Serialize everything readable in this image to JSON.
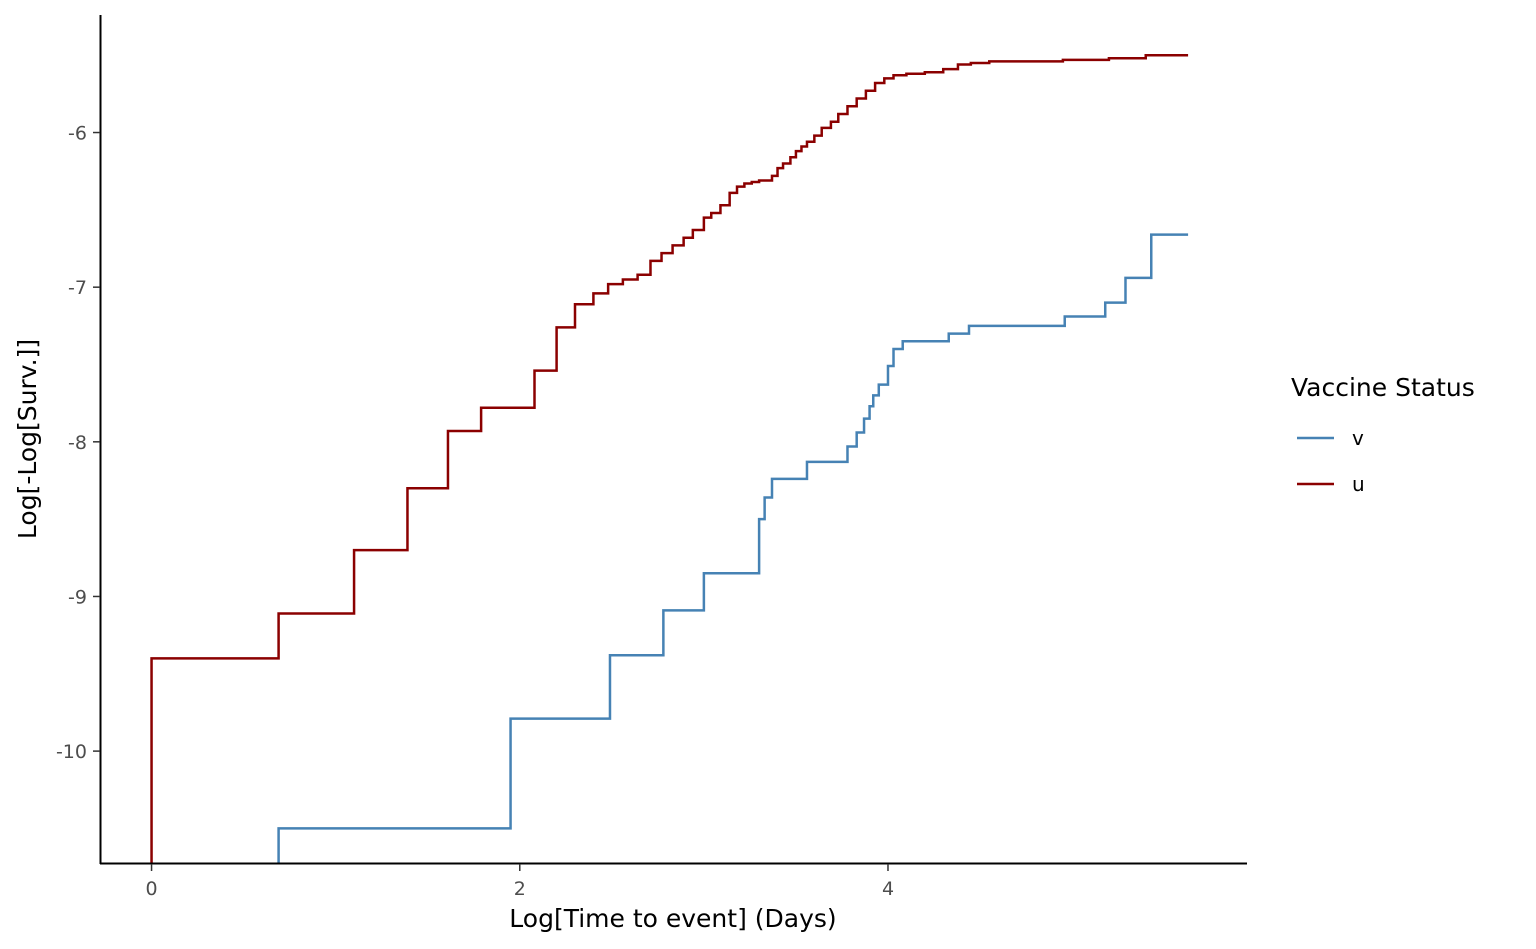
{
  "chart_data": {
    "type": "line",
    "step": true,
    "xlabel": "Log[Time to event] (Days)",
    "ylabel": "Log[-Log[Surv.]]",
    "xlim": [
      -0.28,
      5.95
    ],
    "ylim": [
      -10.73,
      -5.24
    ],
    "x_ticks": [
      0,
      2,
      4
    ],
    "x_tick_labels": [
      "0",
      "2",
      "4"
    ],
    "y_ticks": [
      -10,
      -9,
      -8,
      -7,
      -6
    ],
    "y_tick_labels": [
      "-10",
      "-9",
      "-8",
      "-7",
      "-6"
    ],
    "grid": false,
    "legend": {
      "title": "Vaccine Status",
      "position": "right"
    },
    "series": [
      {
        "name": "v",
        "color": "#4682b4",
        "x": [
          0.69,
          1.95,
          2.49,
          2.78,
          3.0,
          3.3,
          3.33,
          3.37,
          3.56,
          3.78,
          3.83,
          3.87,
          3.9,
          3.92,
          3.95,
          4.0,
          4.03,
          4.08,
          4.33,
          4.44,
          4.96,
          5.18,
          5.29,
          5.43,
          5.63
        ],
        "y": [
          -10.5,
          -9.79,
          -9.38,
          -9.09,
          -8.85,
          -8.5,
          -8.36,
          -8.24,
          -8.13,
          -8.03,
          -7.94,
          -7.85,
          -7.77,
          -7.7,
          -7.63,
          -7.51,
          -7.4,
          -7.35,
          -7.3,
          -7.25,
          -7.19,
          -7.1,
          -6.94,
          -6.66,
          -6.66
        ]
      },
      {
        "name": "u",
        "color": "#8b0000",
        "x": [
          0.0,
          0.69,
          1.1,
          1.39,
          1.61,
          1.79,
          2.08,
          2.2,
          2.3,
          2.4,
          2.48,
          2.56,
          2.64,
          2.71,
          2.77,
          2.83,
          2.89,
          2.94,
          3.0,
          3.04,
          3.09,
          3.14,
          3.18,
          3.22,
          3.26,
          3.3,
          3.37,
          3.4,
          3.43,
          3.47,
          3.5,
          3.53,
          3.56,
          3.6,
          3.64,
          3.69,
          3.73,
          3.78,
          3.83,
          3.88,
          3.93,
          3.98,
          4.03,
          4.1,
          4.2,
          4.3,
          4.38,
          4.45,
          4.55,
          4.7,
          4.95,
          5.2,
          5.4,
          5.63
        ],
        "y": [
          -9.4,
          -9.11,
          -8.7,
          -8.3,
          -7.93,
          -7.78,
          -7.54,
          -7.26,
          -7.11,
          -7.04,
          -6.98,
          -6.95,
          -6.92,
          -6.83,
          -6.78,
          -6.73,
          -6.68,
          -6.63,
          -6.55,
          -6.52,
          -6.47,
          -6.39,
          -6.35,
          -6.33,
          -6.32,
          -6.31,
          -6.28,
          -6.23,
          -6.2,
          -6.16,
          -6.12,
          -6.09,
          -6.06,
          -6.02,
          -5.97,
          -5.93,
          -5.88,
          -5.83,
          -5.78,
          -5.73,
          -5.68,
          -5.65,
          -5.63,
          -5.62,
          -5.61,
          -5.59,
          -5.56,
          -5.55,
          -5.54,
          -5.54,
          -5.53,
          -5.52,
          -5.5,
          -5.5
        ]
      }
    ]
  }
}
